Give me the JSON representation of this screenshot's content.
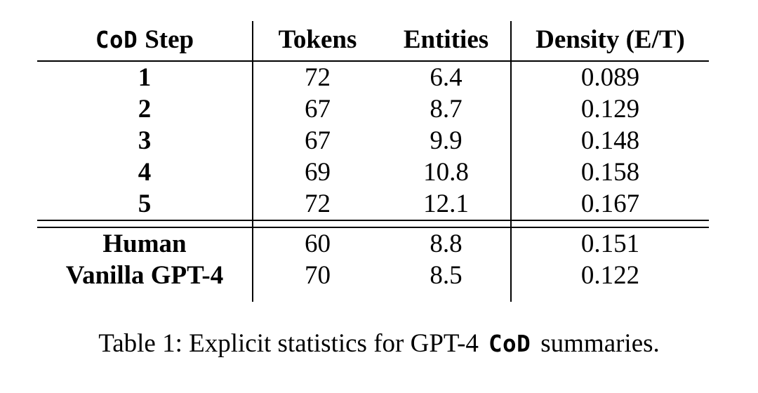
{
  "page": {
    "background": "#ffffff",
    "text_color": "#000000",
    "rule_color": "#000000"
  },
  "table": {
    "header": {
      "col1_mono": "CoD",
      "col1_text": "Step",
      "col2": "Tokens",
      "col3": "Entities",
      "col4": "Density (E/T)"
    },
    "step_rows": [
      [
        "1",
        "72",
        "6.4",
        "0.089"
      ],
      [
        "2",
        "67",
        "8.7",
        "0.129"
      ],
      [
        "3",
        "67",
        "9.9",
        "0.148"
      ],
      [
        "4",
        "69",
        "10.8",
        "0.158"
      ],
      [
        "5",
        "72",
        "12.1",
        "0.167"
      ]
    ],
    "baseline_rows": [
      [
        "Human",
        "60",
        "8.8",
        "0.151"
      ],
      [
        "Vanilla GPT-4",
        "70",
        "8.5",
        "0.122"
      ]
    ]
  },
  "caption": {
    "prefix": "Table 1: Explicit statistics for GPT-4",
    "mono": "CoD",
    "suffix": "summaries."
  }
}
